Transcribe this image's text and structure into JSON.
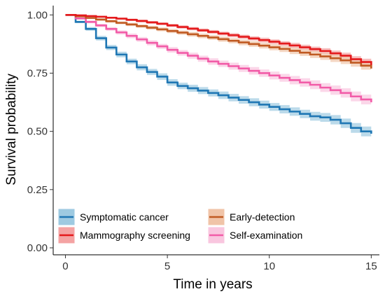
{
  "chart_data": {
    "type": "line",
    "title": "",
    "xlabel": "Time in years",
    "ylabel": "Survival probability",
    "xlim": [
      -0.6,
      15.4
    ],
    "ylim": [
      -0.03,
      1.04
    ],
    "xticks": [
      0,
      5,
      10,
      15
    ],
    "xtick_labels": [
      "0",
      "5",
      "10",
      "15"
    ],
    "yticks": [
      0,
      0.25,
      0.5,
      0.75,
      1.0
    ],
    "ytick_labels": [
      "0.00",
      "0.25",
      "0.50",
      "0.75",
      "1.00"
    ],
    "grid": false,
    "legend_position": "bottom-left",
    "series": [
      {
        "name": "Symptomatic cancer",
        "color": "#1f77b4",
        "band_color": "#9ecae1",
        "x": [
          0,
          0.5,
          1,
          1.5,
          2,
          2.5,
          3,
          3.5,
          4,
          4.5,
          5,
          5.5,
          6,
          6.5,
          7,
          7.5,
          8,
          8.5,
          9,
          9.5,
          10,
          10.5,
          11,
          11.5,
          12,
          12.5,
          13,
          13.5,
          14,
          14.5,
          15
        ],
        "values": [
          1.0,
          0.97,
          0.94,
          0.9,
          0.86,
          0.83,
          0.8,
          0.775,
          0.755,
          0.735,
          0.71,
          0.695,
          0.685,
          0.675,
          0.665,
          0.655,
          0.645,
          0.635,
          0.625,
          0.615,
          0.605,
          0.595,
          0.585,
          0.575,
          0.565,
          0.56,
          0.55,
          0.535,
          0.515,
          0.5,
          0.49
        ],
        "ci": [
          0,
          0.005,
          0.008,
          0.01,
          0.011,
          0.012,
          0.012,
          0.013,
          0.013,
          0.014,
          0.014,
          0.014,
          0.015,
          0.015,
          0.015,
          0.016,
          0.016,
          0.016,
          0.017,
          0.017,
          0.017,
          0.018,
          0.018,
          0.018,
          0.019,
          0.019,
          0.02,
          0.02,
          0.021,
          0.021,
          0.022
        ]
      },
      {
        "name": "Mammography screening",
        "color": "#e41a1c",
        "band_color": "#f4a3a3",
        "x": [
          0,
          0.5,
          1,
          1.5,
          2,
          2.5,
          3,
          3.5,
          4,
          4.5,
          5,
          5.5,
          6,
          6.5,
          7,
          7.5,
          8,
          8.5,
          9,
          9.5,
          10,
          10.5,
          11,
          11.5,
          12,
          12.5,
          13,
          13.5,
          14,
          14.5,
          15
        ],
        "values": [
          1.0,
          0.998,
          0.995,
          0.992,
          0.988,
          0.984,
          0.979,
          0.974,
          0.968,
          0.962,
          0.955,
          0.948,
          0.941,
          0.934,
          0.927,
          0.92,
          0.913,
          0.906,
          0.899,
          0.892,
          0.885,
          0.877,
          0.869,
          0.861,
          0.853,
          0.845,
          0.835,
          0.825,
          0.81,
          0.798,
          0.785
        ],
        "ci": [
          0,
          0.002,
          0.003,
          0.004,
          0.004,
          0.005,
          0.005,
          0.006,
          0.006,
          0.006,
          0.007,
          0.007,
          0.007,
          0.008,
          0.008,
          0.008,
          0.009,
          0.009,
          0.009,
          0.01,
          0.01,
          0.01,
          0.011,
          0.011,
          0.011,
          0.012,
          0.012,
          0.013,
          0.013,
          0.014,
          0.015
        ]
      },
      {
        "name": "Early-detection",
        "color": "#c05a22",
        "band_color": "#f0c4a8",
        "x": [
          0,
          0.5,
          1,
          1.5,
          2,
          2.5,
          3,
          3.5,
          4,
          4.5,
          5,
          5.5,
          6,
          6.5,
          7,
          7.5,
          8,
          8.5,
          9,
          9.5,
          10,
          10.5,
          11,
          11.5,
          12,
          12.5,
          13,
          13.5,
          14,
          14.5,
          15
        ],
        "values": [
          1.0,
          0.994,
          0.987,
          0.98,
          0.973,
          0.966,
          0.959,
          0.952,
          0.945,
          0.938,
          0.931,
          0.924,
          0.917,
          0.91,
          0.903,
          0.896,
          0.889,
          0.882,
          0.875,
          0.868,
          0.861,
          0.854,
          0.846,
          0.838,
          0.83,
          0.822,
          0.814,
          0.805,
          0.795,
          0.782,
          0.77
        ],
        "ci": [
          0,
          0.003,
          0.004,
          0.005,
          0.006,
          0.006,
          0.007,
          0.007,
          0.008,
          0.008,
          0.009,
          0.009,
          0.01,
          0.01,
          0.01,
          0.011,
          0.011,
          0.012,
          0.012,
          0.012,
          0.013,
          0.013,
          0.014,
          0.014,
          0.015,
          0.015,
          0.016,
          0.016,
          0.017,
          0.017,
          0.018
        ]
      },
      {
        "name": "Self-examination",
        "color": "#f25ca8",
        "band_color": "#f9c6df",
        "x": [
          0,
          0.5,
          1,
          1.5,
          2,
          2.5,
          3,
          3.5,
          4,
          4.5,
          5,
          5.5,
          6,
          6.5,
          7,
          7.5,
          8,
          8.5,
          9,
          9.5,
          10,
          10.5,
          11,
          11.5,
          12,
          12.5,
          13,
          13.5,
          14,
          14.5,
          15
        ],
        "values": [
          1.0,
          0.985,
          0.97,
          0.955,
          0.94,
          0.925,
          0.91,
          0.895,
          0.88,
          0.865,
          0.85,
          0.837,
          0.825,
          0.812,
          0.8,
          0.79,
          0.78,
          0.77,
          0.76,
          0.75,
          0.74,
          0.73,
          0.72,
          0.71,
          0.7,
          0.688,
          0.677,
          0.665,
          0.65,
          0.637,
          0.625
        ],
        "ci": [
          0,
          0.004,
          0.006,
          0.007,
          0.008,
          0.009,
          0.01,
          0.01,
          0.011,
          0.011,
          0.012,
          0.012,
          0.013,
          0.013,
          0.014,
          0.014,
          0.015,
          0.015,
          0.016,
          0.016,
          0.017,
          0.017,
          0.018,
          0.018,
          0.019,
          0.019,
          0.02,
          0.02,
          0.021,
          0.021,
          0.022
        ]
      }
    ],
    "legend_order": [
      0,
      2,
      1,
      3
    ]
  }
}
